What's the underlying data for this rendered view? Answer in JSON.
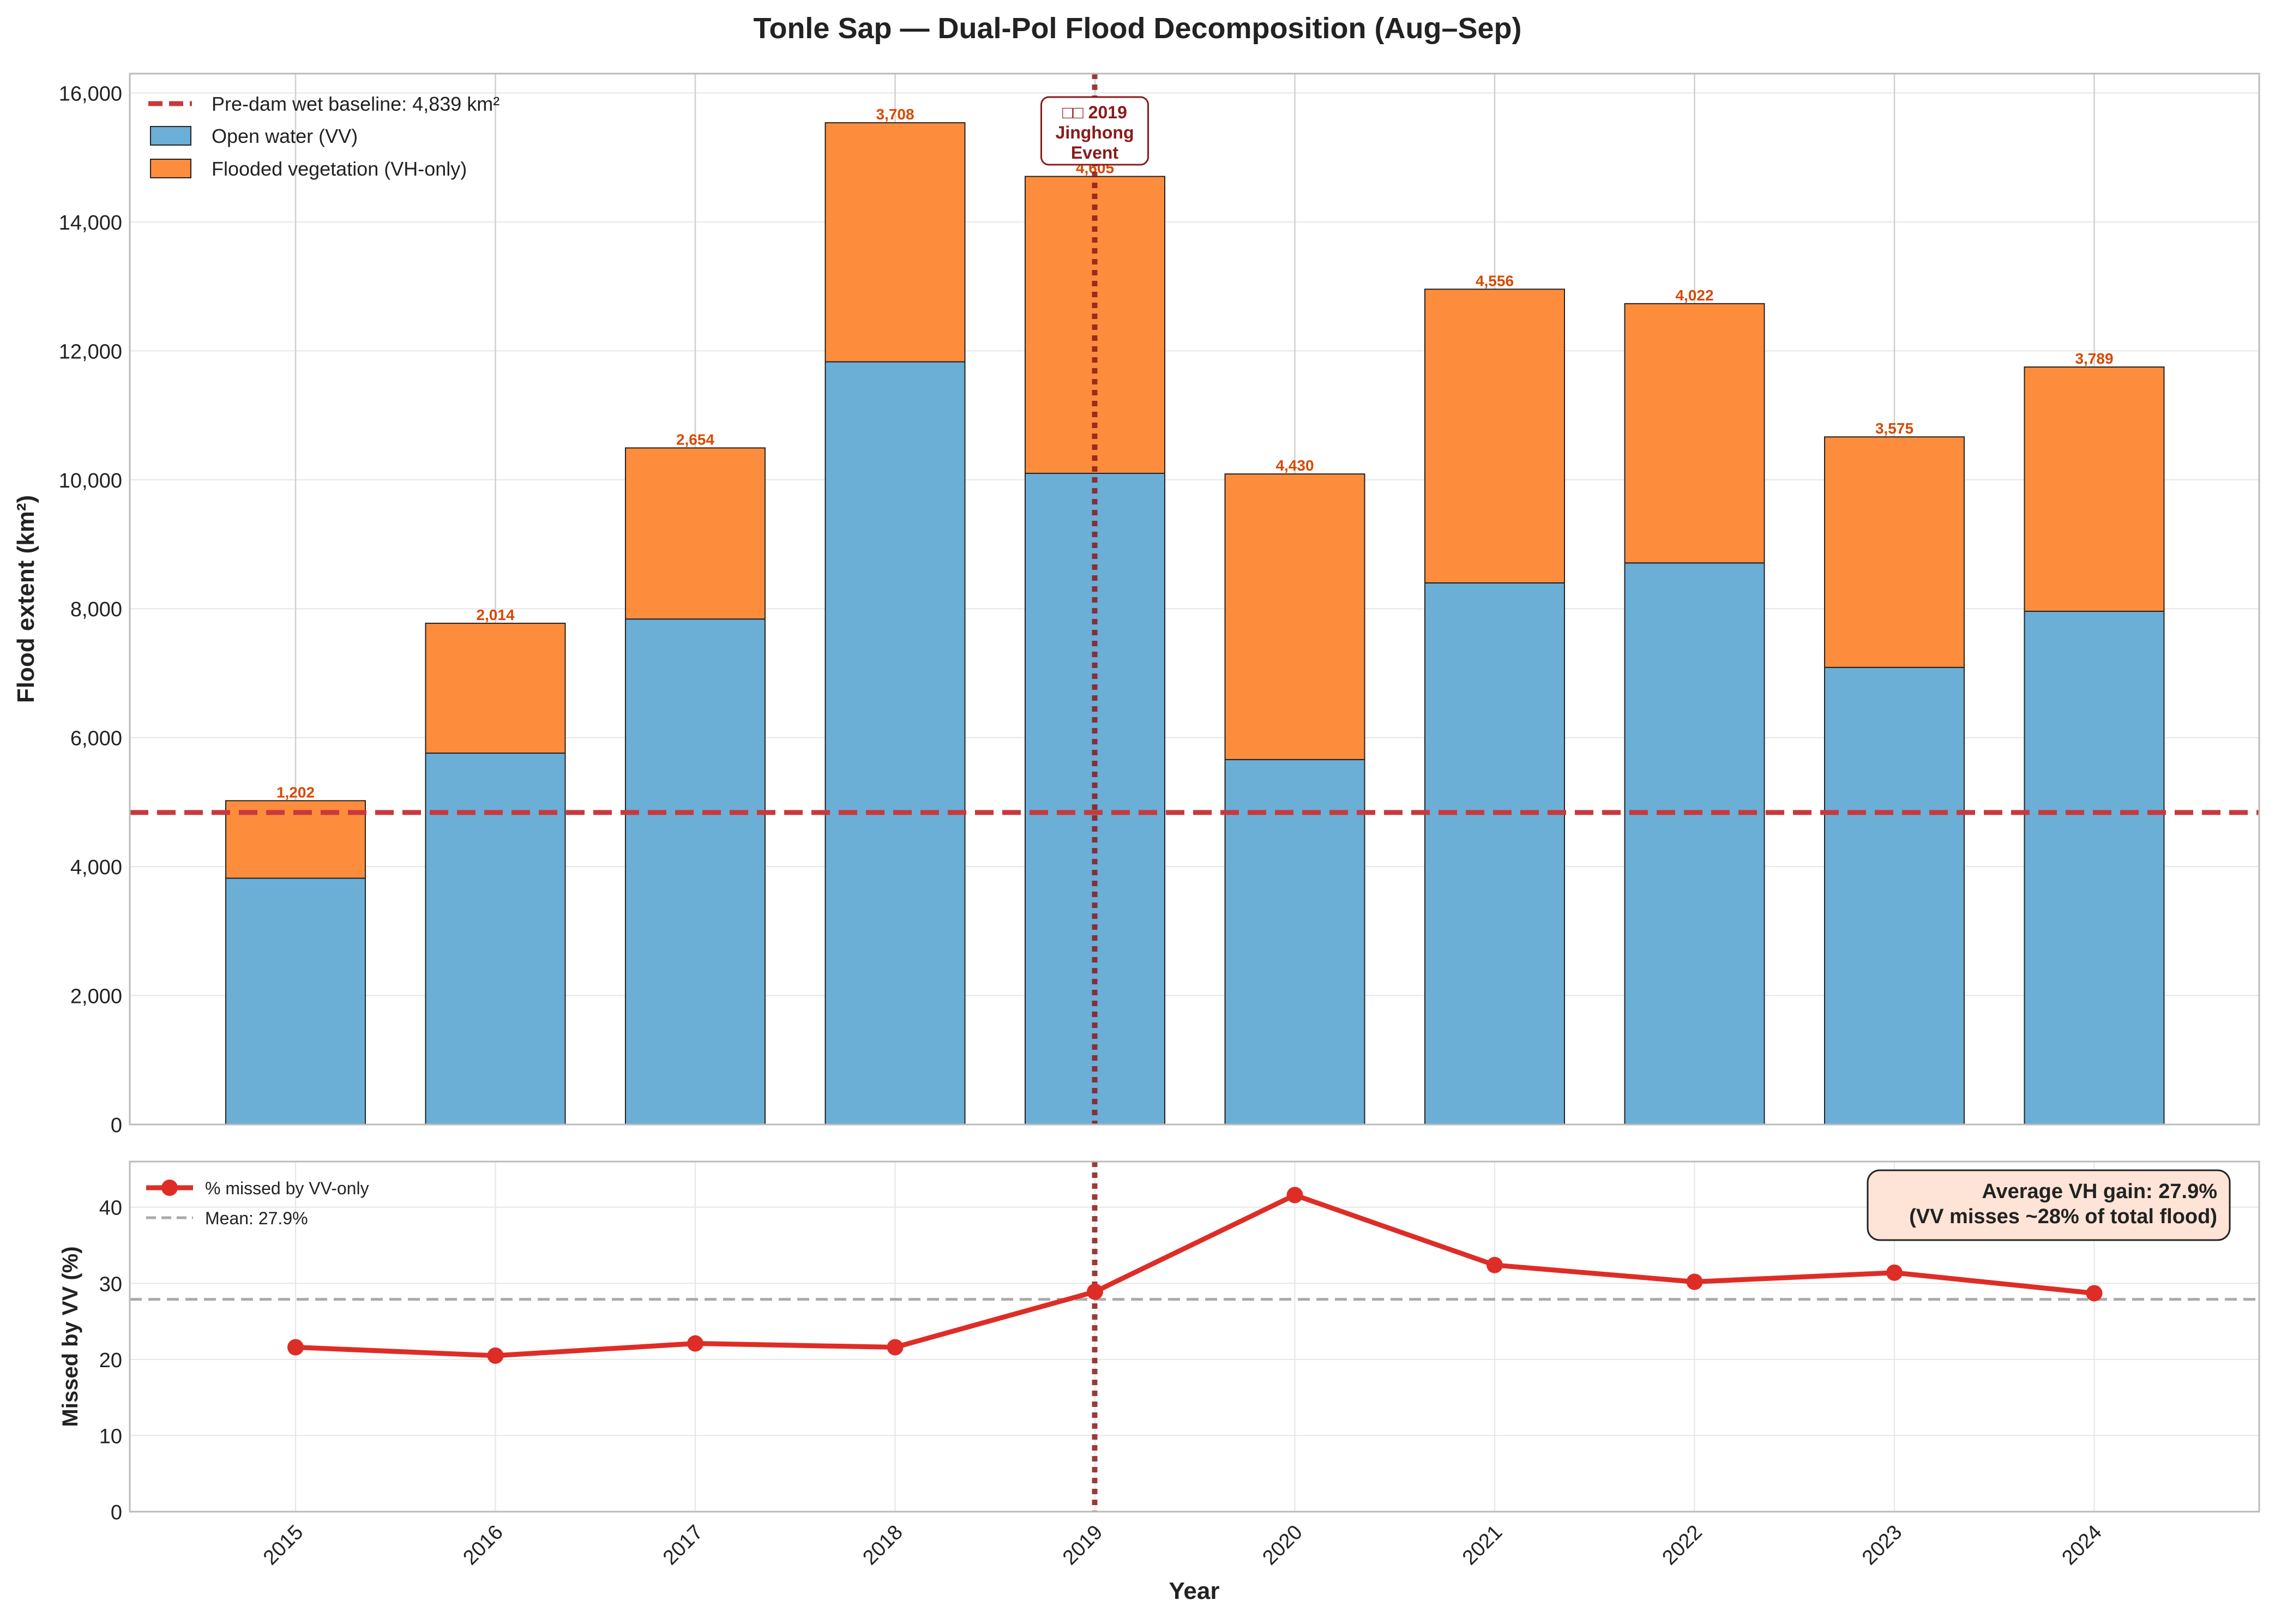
{
  "chart_data": {
    "title": "Tonle Sap — Dual-Pol Flood Decomposition (Aug–Sep)",
    "xlabel": "Year",
    "categories": [
      "2015",
      "2016",
      "2017",
      "2018",
      "2019",
      "2020",
      "2021",
      "2022",
      "2023",
      "2024"
    ],
    "event": {
      "year": "2019",
      "label_lines": [
        "□□ 2019",
        "Jinghong",
        "Event"
      ],
      "color": "#8b1a1a"
    },
    "top": {
      "type": "bar",
      "stacked": true,
      "ylabel": "Flood extent (km²)",
      "ylim": [
        0,
        16300
      ],
      "yticks": [
        0,
        2000,
        4000,
        6000,
        8000,
        10000,
        12000,
        14000,
        16000
      ],
      "ytick_labels": [
        "0",
        "2,000",
        "4,000",
        "6,000",
        "8,000",
        "10,000",
        "12,000",
        "14,000",
        "16,000"
      ],
      "baseline": {
        "value": 4839,
        "label": "Pre-dam wet baseline: 4,839 km²",
        "color": "#c8393d"
      },
      "legend_position": "top-left",
      "series": [
        {
          "name": "Open water (VV)",
          "color": "#6baed6",
          "values": [
            3820,
            5760,
            7840,
            11830,
            10100,
            5660,
            8400,
            8710,
            7090,
            7960
          ]
        },
        {
          "name": "Flooded vegetation (VH-only)",
          "color": "#fd8d3c",
          "values": [
            1202,
            2014,
            2654,
            3708,
            4605,
            4430,
            4556,
            4022,
            3575,
            3789
          ]
        }
      ],
      "data_labels": [
        "1,202",
        "2,014",
        "2,654",
        "3,708",
        "4,605",
        "4,430",
        "4,556",
        "4,022",
        "3,575",
        "3,789"
      ],
      "data_label_color": "#d94801"
    },
    "bottom": {
      "type": "line",
      "ylabel": "Missed by VV (%)",
      "ylim": [
        0,
        46
      ],
      "yticks": [
        0,
        10,
        20,
        30,
        40
      ],
      "ytick_labels": [
        "0",
        "10",
        "20",
        "30",
        "40"
      ],
      "series": [
        {
          "name": "% missed by VV-only",
          "color": "#de2d26",
          "values": [
            21.6,
            20.5,
            22.1,
            21.6,
            28.9,
            41.6,
            32.4,
            30.2,
            31.4,
            28.7
          ]
        }
      ],
      "mean": {
        "value": 27.9,
        "label": "Mean: 27.9%",
        "color": "#aaaaaa"
      },
      "legend_position": "top-left",
      "annotation_lines": [
        "Average VH gain: 27.9%",
        "(VV misses ~28% of total flood)"
      ]
    },
    "grid": true
  }
}
